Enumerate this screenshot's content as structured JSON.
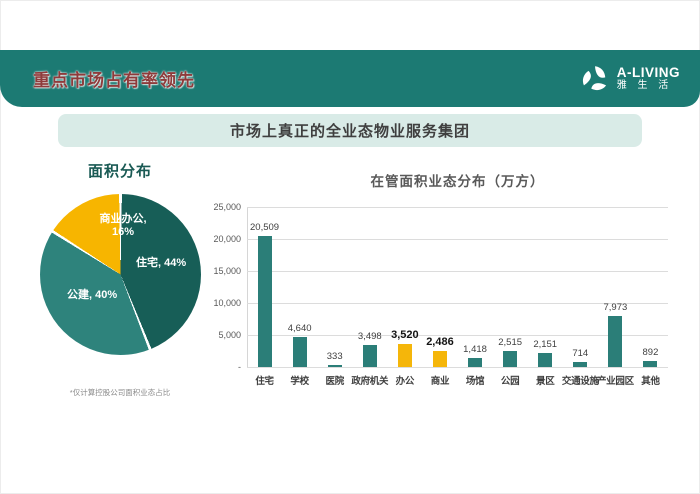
{
  "header": {
    "title": "重点市场占有率领先",
    "logo": {
      "brand": "A-LIVING",
      "brand_cn": "雅 生 活"
    }
  },
  "banner": {
    "text": "市场上真正的全业态物业服务集团"
  },
  "pie_section": {
    "footnote": "*仅计算控股公司面积业态占比"
  },
  "colors": {
    "header_bg": "#1C7A73",
    "header_title": "#8E3B3B",
    "banner_bg": "#D9EBE7",
    "pie_residential": "#175E57",
    "pie_public": "#2E837C",
    "pie_commercial_office": "#F7B500",
    "bar_teal": "#2B7E78",
    "bar_yellow": "#F5B60A"
  },
  "chart_data": [
    {
      "type": "pie",
      "title": "面积分布",
      "slices": [
        {
          "name": "住宅",
          "pct": 44,
          "color": "#175E57",
          "display": "住宅, 44%"
        },
        {
          "name": "公建",
          "pct": 40,
          "color": "#2E837C",
          "display": "公建, 40%"
        },
        {
          "name": "商业办公",
          "pct": 16,
          "color": "#F7B500",
          "display_line1": "商业办公,",
          "display_line2": "16%"
        }
      ],
      "footnote": "*仅计算控股公司面积业态占比"
    },
    {
      "type": "bar",
      "title": "在管面积业态分布（万方）",
      "categories": [
        "住宅",
        "学校",
        "医院",
        "政府机关",
        "办公",
        "商业",
        "场馆",
        "公园",
        "景区",
        "交通设施",
        "产业园区",
        "其他"
      ],
      "values": [
        20509,
        4640,
        333,
        3498,
        3520,
        2486,
        1418,
        2515,
        2151,
        714,
        7973,
        892
      ],
      "value_labels": [
        "20,509",
        "4,640",
        "333",
        "3,498",
        "3,520",
        "2,486",
        "1,418",
        "2,515",
        "2,151",
        "714",
        "7,973",
        "892"
      ],
      "highlight_indices": [
        4,
        5
      ],
      "bar_color": "#2B7E78",
      "highlight_color": "#F5B60A",
      "ylim": [
        0,
        25000
      ],
      "yticks": [
        "25,000",
        "20,000",
        "15,000",
        "10,000",
        "5,000",
        "-"
      ],
      "grid": true,
      "legend": false
    }
  ]
}
